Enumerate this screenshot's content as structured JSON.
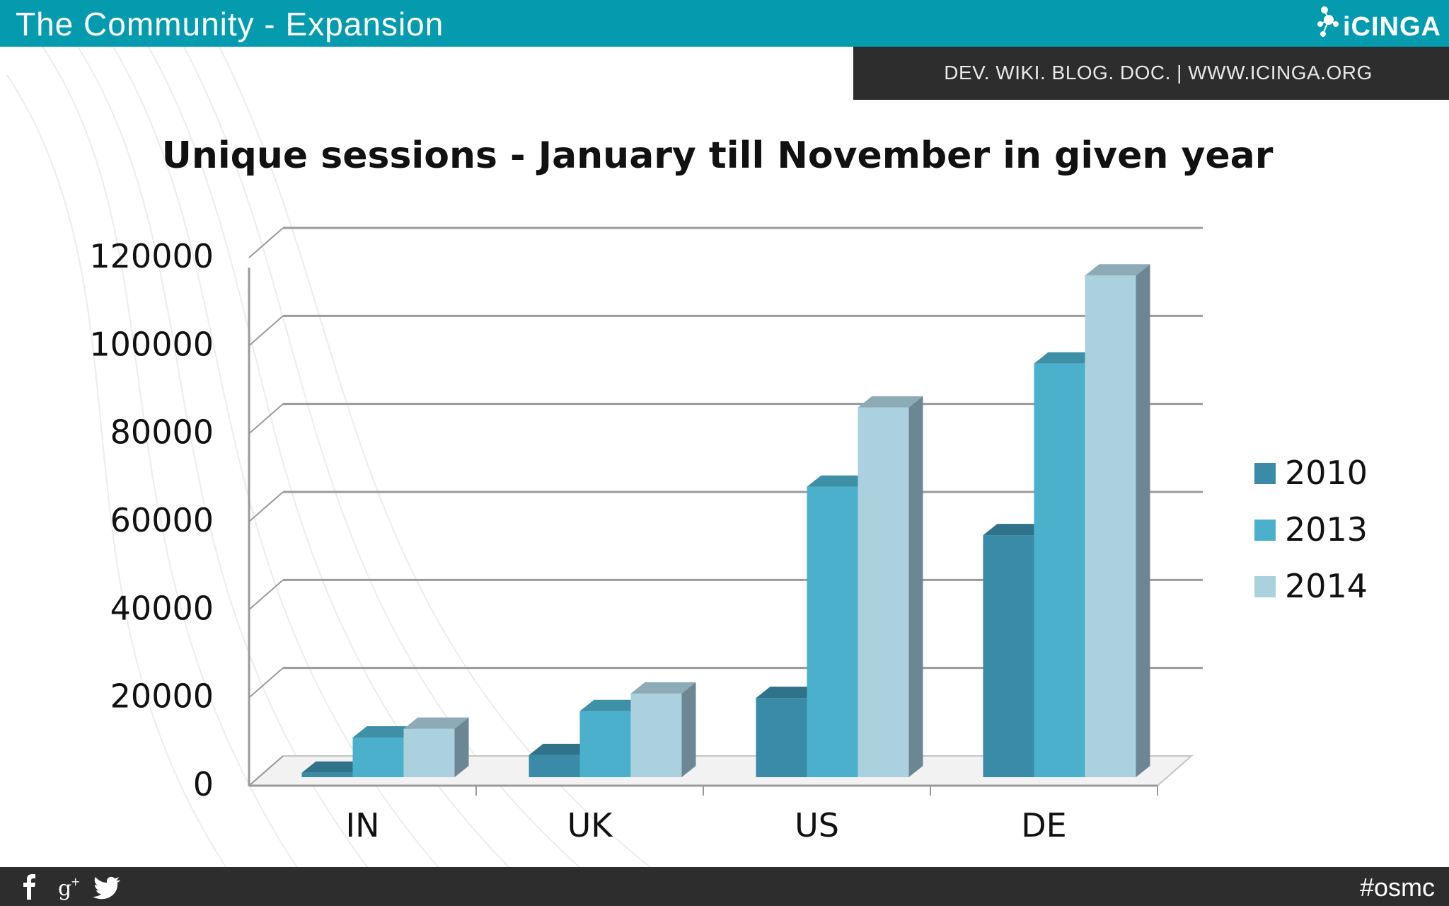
{
  "header": {
    "title": "The Community - Expansion",
    "logo_text": "iCINGA",
    "links": "DEV. WIKI. BLOG. DOC.  |  WWW.ICINGA.ORG"
  },
  "footer": {
    "hashtag": "#osmc",
    "social_icons": [
      "facebook-icon",
      "google-plus-icon",
      "twitter-icon"
    ]
  },
  "colors": {
    "header_bar": "#049baf",
    "dark_bar": "#2d2d2d",
    "series_2010": "#3a8ba7",
    "series_2013": "#4bb0cb",
    "series_2014": "#abd0de"
  },
  "chart_data": {
    "type": "bar",
    "style": "3d-clustered-column",
    "title": "Unique sessions  - January till November in given year",
    "categories": [
      "IN",
      "UK",
      "US",
      "DE"
    ],
    "series": [
      {
        "name": "2010",
        "values": [
          1000,
          5000,
          18000,
          55000
        ]
      },
      {
        "name": "2013",
        "values": [
          9000,
          15000,
          66000,
          94000
        ]
      },
      {
        "name": "2014",
        "values": [
          11000,
          19000,
          84000,
          114000
        ]
      }
    ],
    "ylim": [
      0,
      120000
    ],
    "yticks": [
      "0",
      "20000",
      "40000",
      "60000",
      "80000",
      "100000",
      "120000"
    ],
    "grid": true,
    "legend": "right"
  }
}
